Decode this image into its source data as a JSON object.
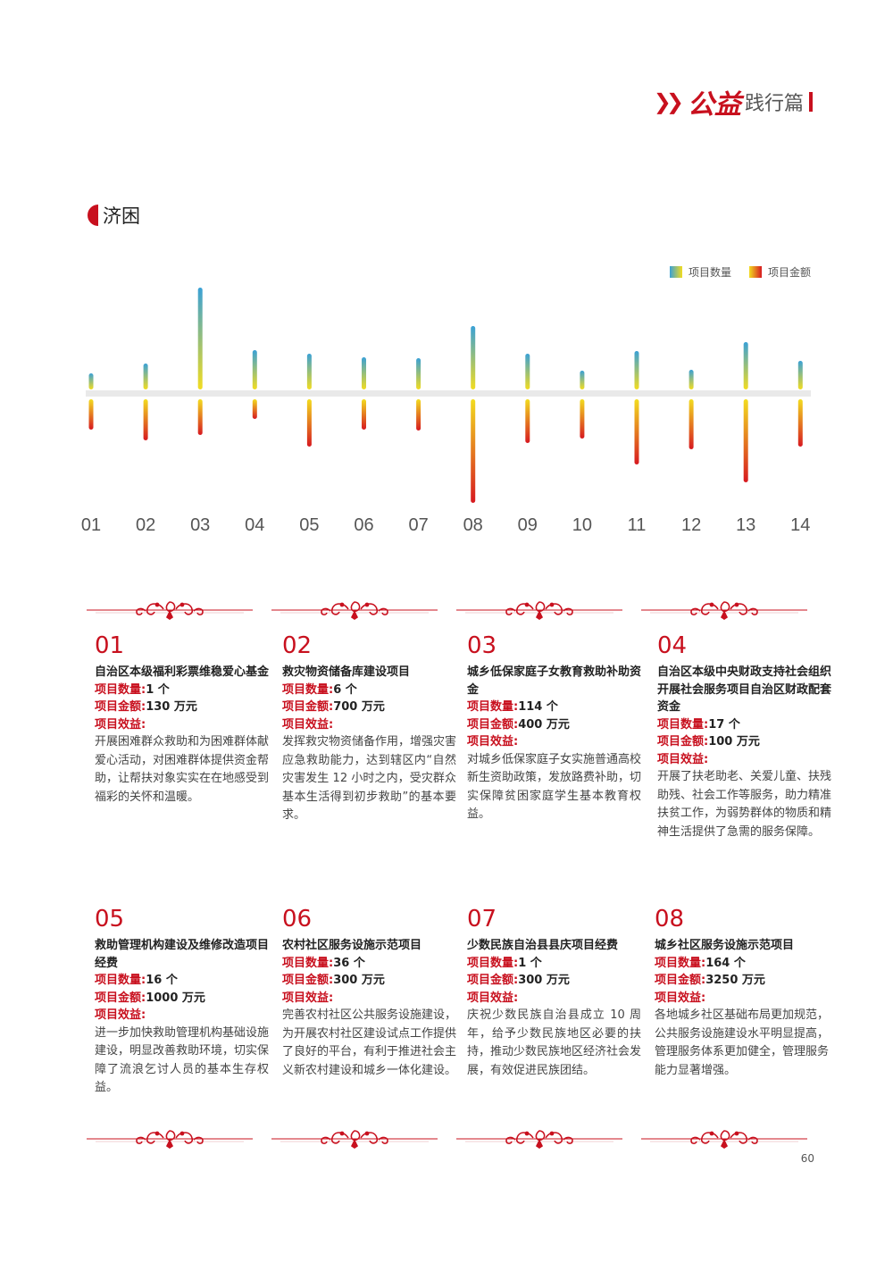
{
  "header": {
    "brand": "公益",
    "subtitle": "践行篇"
  },
  "section": {
    "title": "济困"
  },
  "legend": {
    "count": "项目数量",
    "amount": "项目金额"
  },
  "chart_data": {
    "type": "bar",
    "categories": [
      "01",
      "02",
      "03",
      "04",
      "05",
      "06",
      "07",
      "08",
      "09",
      "10",
      "11",
      "12",
      "13",
      "14"
    ],
    "series": [
      {
        "name": "项目数量",
        "values": [
          1,
          6,
          114,
          17,
          16,
          36,
          1,
          164,
          null,
          null,
          null,
          null,
          null,
          null
        ],
        "relative_height": [
          18,
          29,
          114,
          44,
          40,
          36,
          35,
          71,
          40,
          21,
          43,
          22,
          53,
          32
        ]
      },
      {
        "name": "项目金额",
        "values": [
          130,
          700,
          400,
          100,
          1000,
          300,
          300,
          3250,
          null,
          null,
          null,
          null,
          null,
          null
        ],
        "relative_height": [
          34,
          46,
          40,
          22,
          53,
          34,
          35,
          116,
          49,
          44,
          73,
          56,
          93,
          53
        ]
      }
    ],
    "colors": {
      "count": [
        "#3aa1d6",
        "#f2dc20"
      ],
      "amount": [
        "#f2dc20",
        "#d71920"
      ]
    }
  },
  "cards": [
    {
      "num": "01",
      "title": "自治区本级福利彩票维稳爱心基金",
      "count_label": "项目数量:",
      "count": "1 个",
      "amount_label": "项目金额:",
      "amount": "130 万元",
      "effect_label": "项目效益:",
      "desc": "开展困难群众救助和为困难群体献爱心活动，对困难群体提供资金帮助，让帮扶对象实实在在地感受到福彩的关怀和温暖。"
    },
    {
      "num": "02",
      "title": "救灾物资储备库建设项目",
      "count_label": "项目数量:",
      "count": "6 个",
      "amount_label": "项目金额:",
      "amount": "700 万元",
      "effect_label": "项目效益:",
      "desc": "发挥救灾物资储备作用，增强灾害应急救助能力，达到辖区内“自然灾害发生 12 小时之内，受灾群众基本生活得到初步救助”的基本要求。"
    },
    {
      "num": "03",
      "title": "城乡低保家庭子女教育救助补助资金",
      "count_label": "项目数量:",
      "count": "114 个",
      "amount_label": "项目金额:",
      "amount": "400 万元",
      "effect_label": "项目效益:",
      "desc": "对城乡低保家庭子女实施普通高校新生资助政策，发放路费补助，切实保障贫困家庭学生基本教育权益。"
    },
    {
      "num": "04",
      "title": "自治区本级中央财政支持社会组织开展社会服务项目自治区财政配套资金",
      "count_label": "项目数量:",
      "count": "17 个",
      "amount_label": "项目金额:",
      "amount": "100 万元",
      "effect_label": "项目效益:",
      "desc": "开展了扶老助老、关爱儿童、扶残助残、社会工作等服务，助力精准扶贫工作，为弱势群体的物质和精神生活提供了急需的服务保障。"
    },
    {
      "num": "05",
      "title": "救助管理机构建设及维修改造项目经费",
      "count_label": "项目数量:",
      "count": "16 个",
      "amount_label": "项目金额:",
      "amount": "1000 万元",
      "effect_label": "项目效益:",
      "desc": "进一步加快救助管理机构基础设施建设，明显改善救助环境，切实保障了流浪乞讨人员的基本生存权益。"
    },
    {
      "num": "06",
      "title": "农村社区服务设施示范项目",
      "count_label": "项目数量:",
      "count": "36 个",
      "amount_label": "项目金额:",
      "amount": "300 万元",
      "effect_label": "项目效益:",
      "desc": "完善农村社区公共服务设施建设，为开展农村社区建设试点工作提供了良好的平台，有利于推进社会主义新农村建设和城乡一体化建设。"
    },
    {
      "num": "07",
      "title": "少数民族自治县县庆项目经费",
      "count_label": "项目数量:",
      "count": "1 个",
      "amount_label": "项目金额:",
      "amount": "300 万元",
      "effect_label": "项目效益:",
      "desc": "庆祝少数民族自治县成立 10 周年，给予少数民族地区必要的扶持，推动少数民族地区经济社会发展，有效促进民族团结。"
    },
    {
      "num": "08",
      "title": "城乡社区服务设施示范项目",
      "count_label": "项目数量:",
      "count": "164 个",
      "amount_label": "项目金额:",
      "amount": "3250 万元",
      "effect_label": "项目效益:",
      "desc": "各地城乡社区基础布局更加规范，公共服务设施建设水平明显提高，管理服务体系更加健全，管理服务能力显著增强。"
    }
  ],
  "page_number": "60"
}
